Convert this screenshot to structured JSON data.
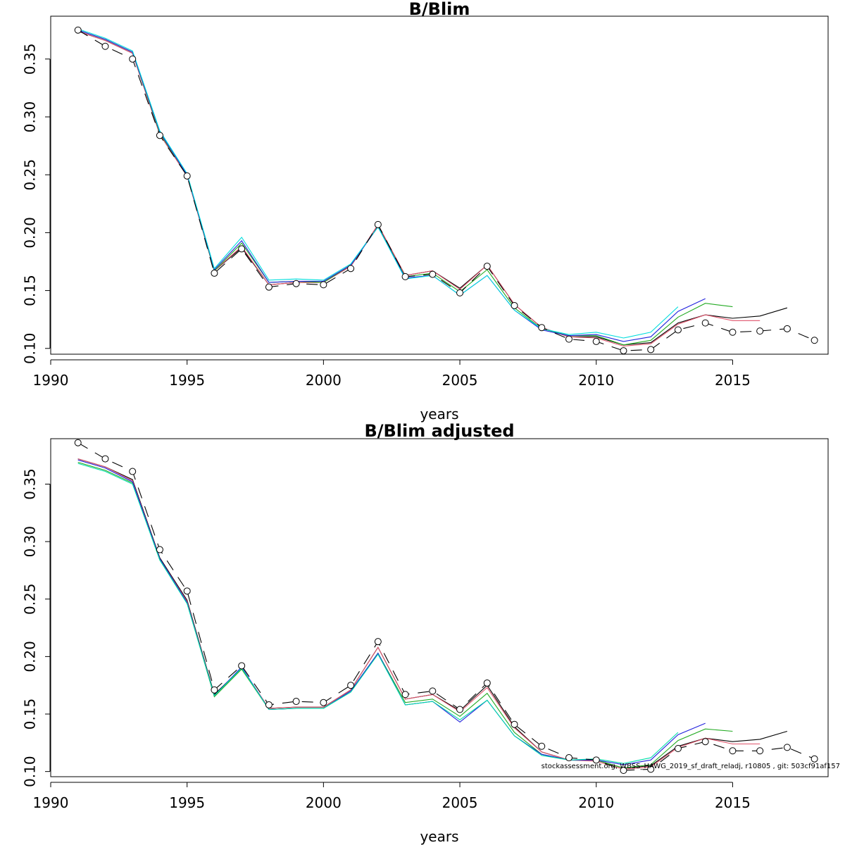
{
  "footer": "stockassessment.org, WBSS_HAWG_2019_sf_draft_reladj, r10805 , git: 503cf91af157",
  "chart_data": [
    {
      "type": "line",
      "title": "B/Blim",
      "xlabel": "years",
      "ylabel": "",
      "xlim": [
        1990,
        2018.5
      ],
      "ylim": [
        0.095,
        0.387
      ],
      "xticks": [
        1990,
        1995,
        2000,
        2005,
        2010,
        2015
      ],
      "yticks": [
        0.1,
        0.15,
        0.2,
        0.25,
        0.3,
        0.35
      ],
      "ytick_labels": [
        "0.10",
        "0.15",
        "0.20",
        "0.25",
        "0.30",
        "0.35"
      ],
      "grid": false,
      "legend": "none",
      "x_start": 1991,
      "series": [
        {
          "color": "#000000",
          "style": "dashed-points",
          "values": [
            0.375,
            0.361,
            0.35,
            0.284,
            0.249,
            0.165,
            0.186,
            0.153,
            0.156,
            0.155,
            0.169,
            0.207,
            0.162,
            0.164,
            0.148,
            0.171,
            0.137,
            0.118,
            0.108,
            0.106,
            0.098,
            0.099,
            0.116,
            0.122,
            0.114,
            0.115,
            0.117,
            0.107
          ]
        },
        {
          "color": "#000000",
          "style": "solid",
          "values": [
            0.374,
            0.366,
            0.355,
            0.285,
            0.249,
            0.167,
            0.187,
            0.155,
            0.157,
            0.157,
            0.171,
            0.206,
            0.163,
            0.167,
            0.152,
            0.172,
            0.138,
            0.118,
            0.11,
            0.11,
            0.103,
            0.105,
            0.122,
            0.129,
            0.126,
            0.128,
            0.135
          ]
        },
        {
          "color": "#DF536B",
          "style": "solid",
          "values": [
            0.374,
            0.366,
            0.355,
            0.285,
            0.249,
            0.167,
            0.188,
            0.155,
            0.157,
            0.157,
            0.171,
            0.207,
            0.163,
            0.167,
            0.151,
            0.172,
            0.138,
            0.118,
            0.11,
            0.109,
            0.102,
            0.104,
            0.121,
            0.129,
            0.124,
            0.124
          ]
        },
        {
          "color": "#22AA22",
          "style": "solid",
          "values": [
            0.375,
            0.367,
            0.356,
            0.286,
            0.25,
            0.167,
            0.191,
            0.157,
            0.158,
            0.157,
            0.172,
            0.205,
            0.162,
            0.165,
            0.149,
            0.168,
            0.135,
            0.117,
            0.111,
            0.111,
            0.103,
            0.107,
            0.127,
            0.139,
            0.136
          ]
        },
        {
          "color": "#2222DD",
          "style": "solid",
          "values": [
            0.375,
            0.367,
            0.356,
            0.287,
            0.25,
            0.168,
            0.193,
            0.157,
            0.158,
            0.158,
            0.172,
            0.205,
            0.161,
            0.163,
            0.146,
            0.163,
            0.133,
            0.116,
            0.111,
            0.112,
            0.106,
            0.11,
            0.132,
            0.143
          ]
        },
        {
          "color": "#00DDDD",
          "style": "solid",
          "values": [
            0.376,
            0.368,
            0.357,
            0.288,
            0.251,
            0.169,
            0.196,
            0.159,
            0.16,
            0.159,
            0.173,
            0.205,
            0.16,
            0.163,
            0.146,
            0.163,
            0.133,
            0.117,
            0.112,
            0.114,
            0.109,
            0.114,
            0.136
          ]
        }
      ]
    },
    {
      "type": "line",
      "title": "B/Blim adjusted",
      "xlabel": "years",
      "ylabel": "",
      "xlim": [
        1990,
        2018.5
      ],
      "ylim": [
        0.0955,
        0.3895
      ],
      "xticks": [
        1990,
        1995,
        2000,
        2005,
        2010,
        2015
      ],
      "yticks": [
        0.1,
        0.15,
        0.2,
        0.25,
        0.3,
        0.35
      ],
      "ytick_labels": [
        "0.10",
        "0.15",
        "0.20",
        "0.25",
        "0.30",
        "0.35"
      ],
      "grid": false,
      "legend": "none",
      "x_start": 1991,
      "series": [
        {
          "color": "#000000",
          "style": "dashed-points",
          "values": [
            0.386,
            0.372,
            0.361,
            0.293,
            0.257,
            0.171,
            0.192,
            0.158,
            0.161,
            0.16,
            0.175,
            0.213,
            0.167,
            0.17,
            0.154,
            0.177,
            0.141,
            0.122,
            0.112,
            0.11,
            0.101,
            0.102,
            0.12,
            0.126,
            0.118,
            0.118,
            0.121,
            0.111
          ]
        },
        {
          "color": "#000000",
          "style": "solid",
          "values": [
            0.372,
            0.365,
            0.354,
            0.286,
            0.249,
            0.167,
            0.19,
            0.155,
            0.156,
            0.156,
            0.171,
            0.208,
            0.163,
            0.167,
            0.153,
            0.175,
            0.139,
            0.117,
            0.11,
            0.11,
            0.103,
            0.105,
            0.122,
            0.129,
            0.126,
            0.128,
            0.135
          ]
        },
        {
          "color": "#DF536B",
          "style": "solid",
          "values": [
            0.372,
            0.365,
            0.353,
            0.285,
            0.248,
            0.166,
            0.19,
            0.155,
            0.156,
            0.156,
            0.171,
            0.208,
            0.163,
            0.167,
            0.152,
            0.173,
            0.138,
            0.117,
            0.11,
            0.109,
            0.102,
            0.104,
            0.121,
            0.129,
            0.124,
            0.124
          ]
        },
        {
          "color": "#22AA22",
          "style": "solid",
          "values": [
            0.369,
            0.362,
            0.351,
            0.284,
            0.247,
            0.165,
            0.189,
            0.154,
            0.155,
            0.155,
            0.17,
            0.203,
            0.16,
            0.163,
            0.148,
            0.168,
            0.134,
            0.115,
            0.11,
            0.11,
            0.103,
            0.106,
            0.127,
            0.137,
            0.135
          ]
        },
        {
          "color": "#2222DD",
          "style": "solid",
          "values": [
            0.371,
            0.364,
            0.352,
            0.285,
            0.247,
            0.166,
            0.191,
            0.154,
            0.155,
            0.155,
            0.17,
            0.203,
            0.158,
            0.161,
            0.143,
            0.162,
            0.131,
            0.115,
            0.11,
            0.11,
            0.106,
            0.11,
            0.132,
            0.142
          ]
        },
        {
          "color": "#00DDAA",
          "style": "solid",
          "values": [
            0.368,
            0.361,
            0.35,
            0.284,
            0.246,
            0.166,
            0.19,
            0.154,
            0.155,
            0.155,
            0.169,
            0.202,
            0.158,
            0.161,
            0.145,
            0.162,
            0.131,
            0.114,
            0.11,
            0.111,
            0.107,
            0.112,
            0.134
          ]
        }
      ]
    }
  ]
}
